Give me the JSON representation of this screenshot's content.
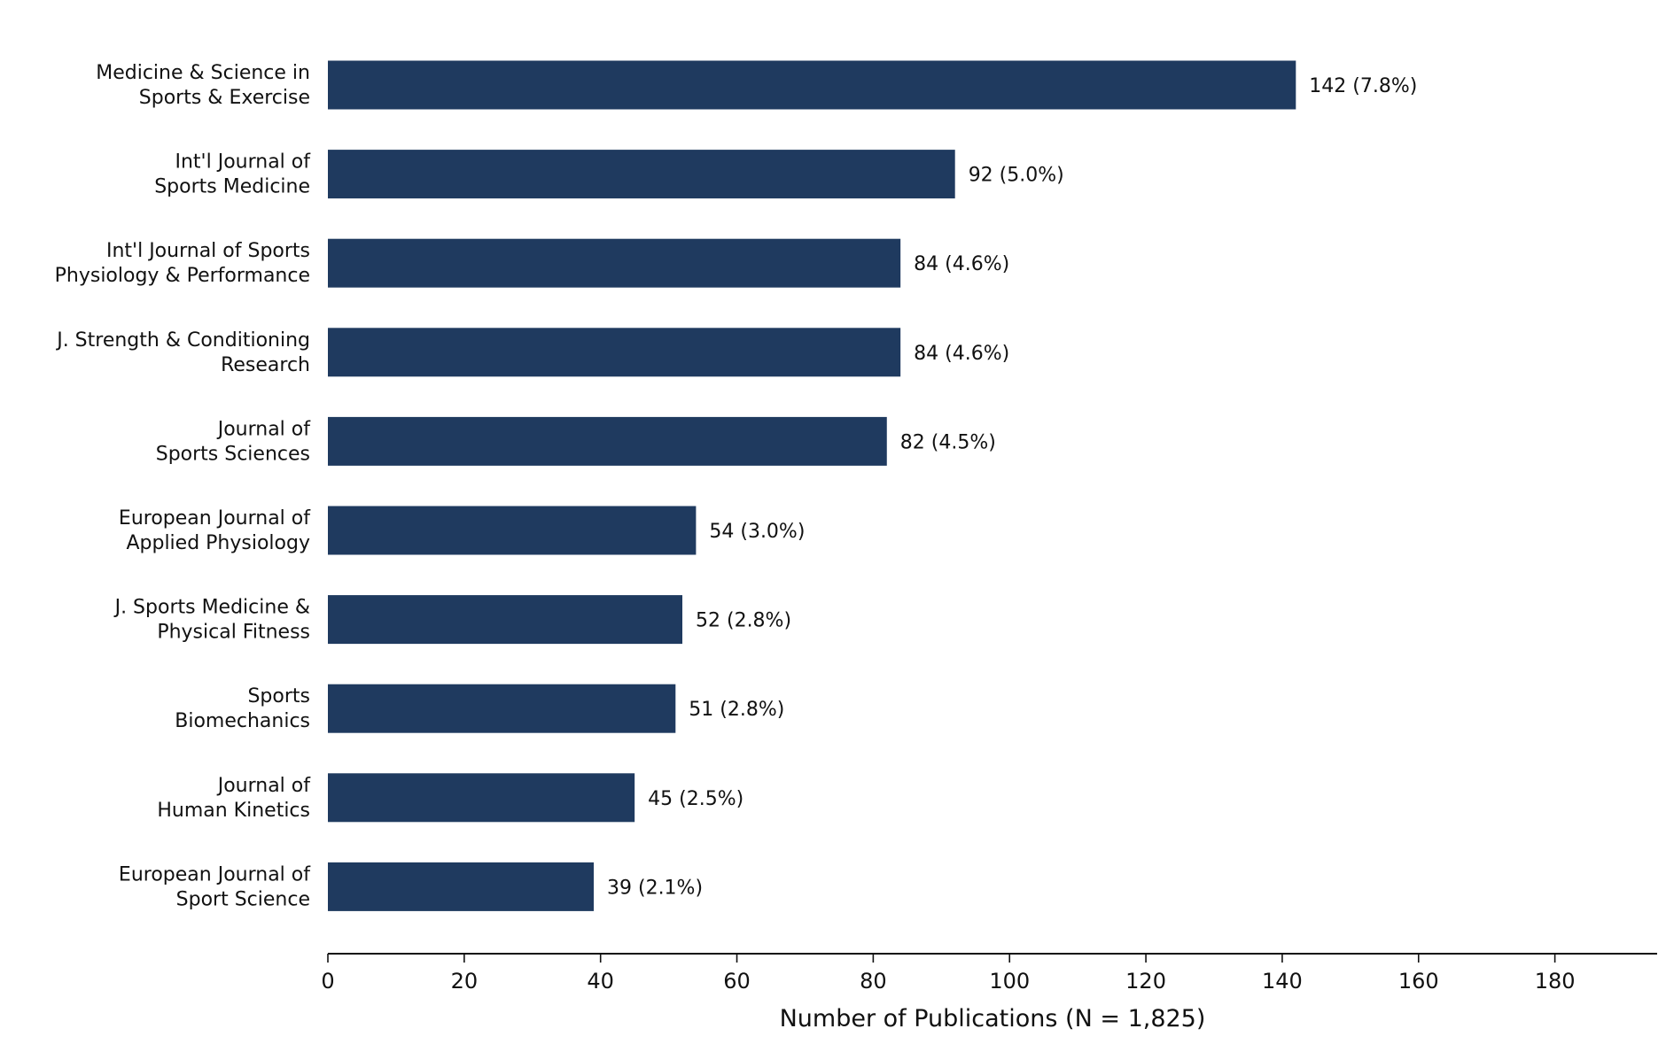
{
  "chart_data": {
    "type": "bar",
    "orientation": "horizontal",
    "title": "",
    "xlabel": "Number of Publications (N = 1,825)",
    "ylabel": "",
    "xlim": [
      0,
      195
    ],
    "xticks": [
      0,
      20,
      40,
      60,
      80,
      100,
      120,
      140,
      160,
      180
    ],
    "grid": false,
    "bar_color": "#1f3a5f",
    "categories": [
      [
        "Medicine & Science in",
        "Sports & Exercise"
      ],
      [
        "Int'l Journal of",
        "Sports Medicine"
      ],
      [
        "Int'l Journal of Sports",
        "Physiology & Performance"
      ],
      [
        "J. Strength & Conditioning",
        "Research"
      ],
      [
        "Journal of",
        "Sports Sciences"
      ],
      [
        "European Journal of",
        "Applied Physiology"
      ],
      [
        "J. Sports Medicine &",
        "Physical Fitness"
      ],
      [
        "Sports",
        "Biomechanics"
      ],
      [
        "Journal of",
        "Human Kinetics"
      ],
      [
        "European Journal of",
        "Sport Science"
      ]
    ],
    "values": [
      142,
      92,
      84,
      84,
      82,
      54,
      52,
      51,
      45,
      39
    ],
    "data_labels": [
      "142 (7.8%)",
      "92 (5.0%)",
      "84 (4.6%)",
      "84 (4.6%)",
      "82 (4.5%)",
      "54 (3.0%)",
      "52 (2.8%)",
      "51 (2.8%)",
      "45 (2.5%)",
      "39 (2.1%)"
    ]
  }
}
